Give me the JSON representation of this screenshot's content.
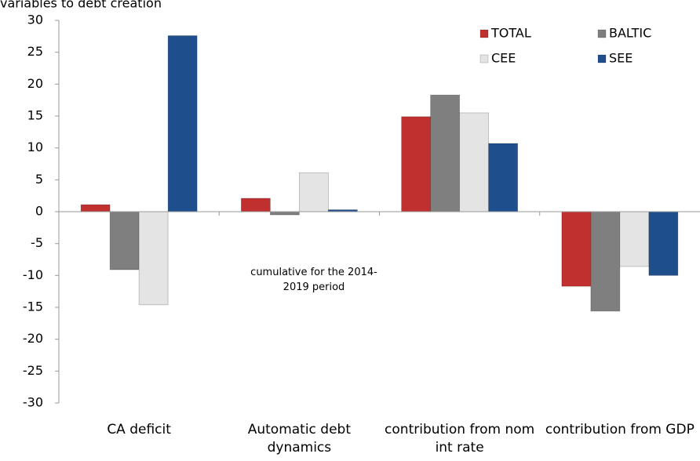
{
  "chart_data": {
    "type": "bar",
    "title": "variables to debt creation",
    "annotation": "cumulative for the 2014-2019 period",
    "categories": [
      "CA deficit",
      "Automatic debt dynamics",
      "contribution from nom int rate",
      "contribution from GDP"
    ],
    "series": [
      {
        "name": "TOTAL",
        "color": "#c0302f",
        "values": [
          1.1,
          2.1,
          14.9,
          -11.7
        ]
      },
      {
        "name": "BALTIC",
        "color": "#7f7f7f",
        "values": [
          -9.1,
          -0.5,
          18.3,
          -15.6
        ]
      },
      {
        "name": "CEE",
        "color": "#e4e4e4",
        "values": [
          -14.6,
          6.1,
          15.5,
          -8.6
        ]
      },
      {
        "name": "SEE",
        "color": "#1f4e8c",
        "values": [
          27.6,
          0.3,
          10.7,
          -10.0
        ]
      }
    ],
    "ylim": [
      -30,
      30
    ],
    "yticks": [
      -30,
      -25,
      -20,
      -15,
      -10,
      -5,
      0,
      5,
      10,
      15,
      20,
      25,
      30
    ],
    "grid": false,
    "legend": "top-right"
  }
}
